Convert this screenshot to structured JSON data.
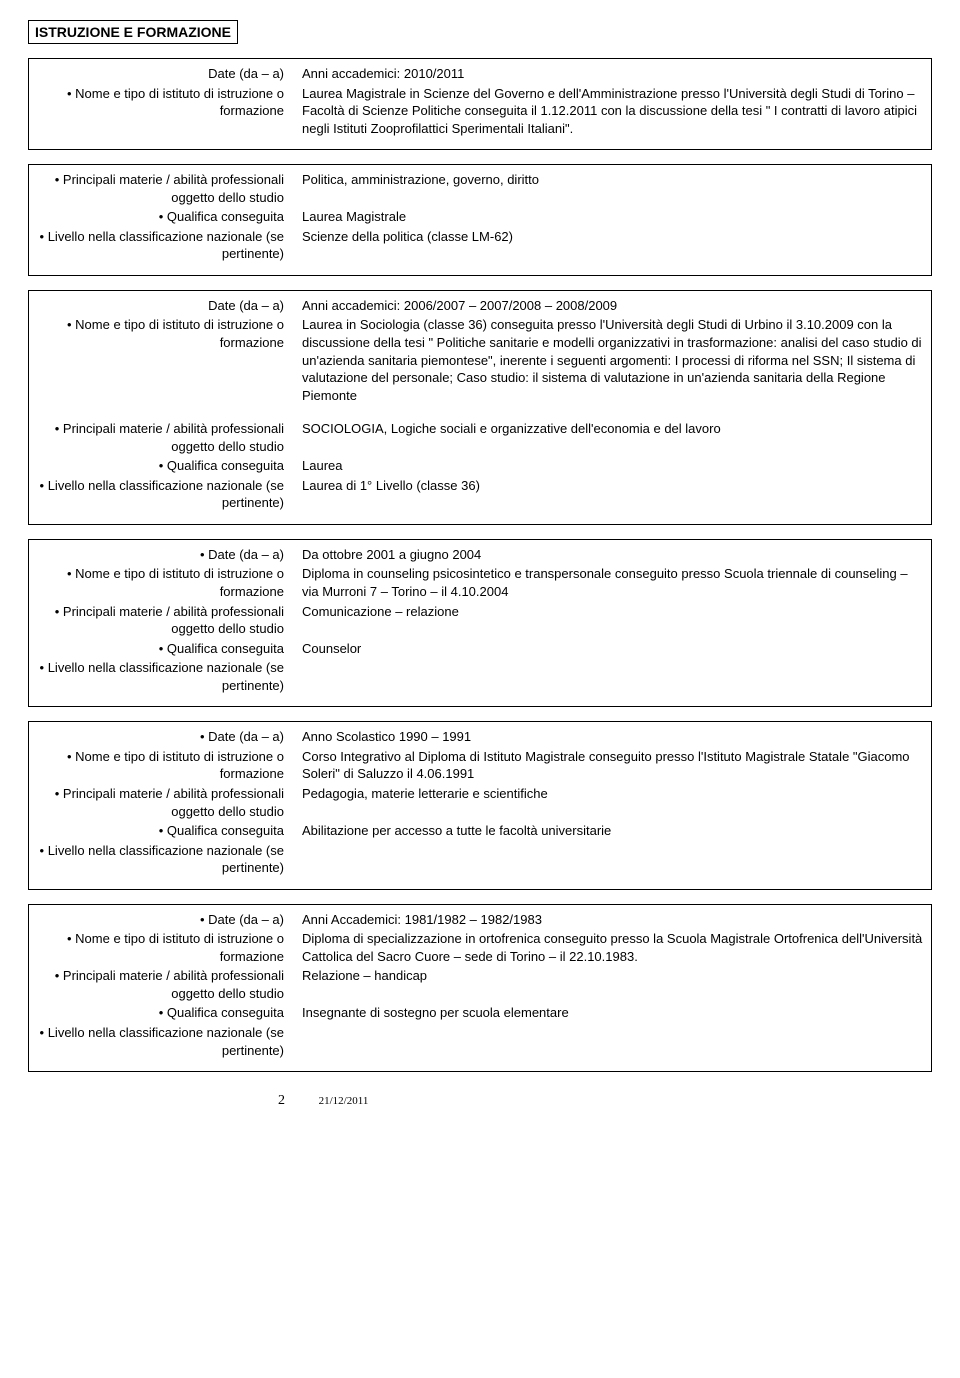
{
  "section_header": "ISTRUZIONE E FORMAZIONE",
  "labels": {
    "date": "Date (da – a)",
    "date_bullet": "• Date (da – a)",
    "istituto": "• Nome e tipo di istituto di istruzione o formazione",
    "materie": "• Principali materie / abilità professionali oggetto dello studio",
    "qualifica": "• Qualifica conseguita",
    "livello": "• Livello nella classificazione nazionale (se pertinente)"
  },
  "block1a": {
    "date": "Anni accademici: 2010/2011",
    "istituto": "Laurea Magistrale in Scienze del Governo e dell'Amministrazione presso l'Università degli Studi di Torino – Facoltà di Scienze Politiche conseguita il 1.12.2011 con la discussione della tesi \" I contratti di lavoro atipici negli Istituti Zooprofilattici Sperimentali Italiani\"."
  },
  "block1b": {
    "materie": "Politica, amministrazione, governo, diritto",
    "qualifica": "Laurea Magistrale",
    "livello": "Scienze della politica (classe LM-62)"
  },
  "block2": {
    "date": "Anni accademici: 2006/2007 – 2007/2008 – 2008/2009",
    "istituto": "Laurea in Sociologia (classe 36) conseguita presso l'Università degli Studi di Urbino il 3.10.2009 con la discussione della tesi \" Politiche sanitarie e modelli organizzativi in trasformazione: analisi del caso studio di un'azienda sanitaria piemontese\", inerente i seguenti argomenti: I processi di riforma nel SSN; Il sistema di valutazione del personale; Caso studio: il sistema di valutazione in un'azienda sanitaria della Regione Piemonte",
    "materie": "SOCIOLOGIA, Logiche sociali e organizzative dell'economia e del lavoro",
    "qualifica": "Laurea",
    "livello": "Laurea di 1° Livello (classe 36)"
  },
  "block3": {
    "date": "Da ottobre 2001 a giugno 2004",
    "istituto": "Diploma in counseling psicosintetico e transpersonale conseguito presso Scuola triennale di counseling – via Murroni 7 – Torino – il 4.10.2004",
    "materie": "Comunicazione – relazione",
    "qualifica": "Counselor",
    "livello": ""
  },
  "block4": {
    "date": "Anno Scolastico 1990 – 1991",
    "istituto": "Corso Integrativo al Diploma di Istituto Magistrale conseguito presso l'Istituto Magistrale Statale \"Giacomo Soleri\" di Saluzzo il 4.06.1991",
    "materie": "Pedagogia, materie letterarie e scientifiche",
    "qualifica": "Abilitazione per accesso a tutte le facoltà universitarie",
    "livello": ""
  },
  "block5": {
    "date": "Anni Accademici: 1981/1982 – 1982/1983",
    "istituto": "Diploma di specializzazione in ortofrenica conseguito presso la Scuola Magistrale Ortofrenica dell'Università Cattolica del Sacro Cuore – sede di Torino – il 22.10.1983.",
    "materie": "Relazione – handicap",
    "qualifica": "Insegnante di sostegno per scuola elementare",
    "livello": ""
  },
  "footer": {
    "page": "2",
    "date": "21/12/2011"
  }
}
